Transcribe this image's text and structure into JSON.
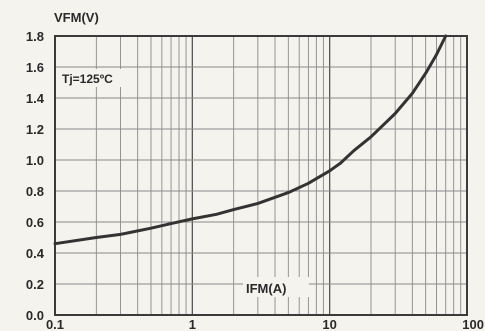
{
  "chart_data": {
    "type": "line",
    "x_scale": "log",
    "xlim": [
      0.1,
      100
    ],
    "ylim": [
      0.0,
      1.8
    ],
    "x_ticks": [
      0.1,
      1,
      10,
      100
    ],
    "x_tick_labels": [
      "0.1",
      "1",
      "10",
      "100"
    ],
    "y_ticks": [
      0.0,
      0.2,
      0.4,
      0.6,
      0.8,
      1.0,
      1.2,
      1.4,
      1.6,
      1.8
    ],
    "y_tick_labels": [
      "0.0",
      "0.2",
      "0.4",
      "0.6",
      "0.8",
      "1.0",
      "1.2",
      "1.4",
      "1.6",
      "1.8"
    ],
    "ylabel": "VFM(V)",
    "xlabel": "IFM(A)",
    "annotation": "Tj=125ºC",
    "grid": true,
    "series": [
      {
        "x": [
          0.1,
          0.2,
          0.3,
          0.5,
          0.7,
          1.0,
          1.5,
          2.0,
          3.0,
          5.0,
          7.0,
          10.0,
          12.0,
          15.0,
          20.0,
          30.0,
          40.0,
          50.0,
          60.0,
          70.0
        ],
        "y": [
          0.46,
          0.5,
          0.52,
          0.56,
          0.59,
          0.62,
          0.65,
          0.68,
          0.72,
          0.79,
          0.85,
          0.93,
          0.98,
          1.06,
          1.15,
          1.3,
          1.43,
          1.56,
          1.68,
          1.8
        ]
      }
    ],
    "colors": {
      "line": "#333333",
      "grid": "#8a8a8a",
      "frame": "#3a3a3a",
      "text": "#2a2a2a",
      "background": "#f4f3ee"
    }
  }
}
